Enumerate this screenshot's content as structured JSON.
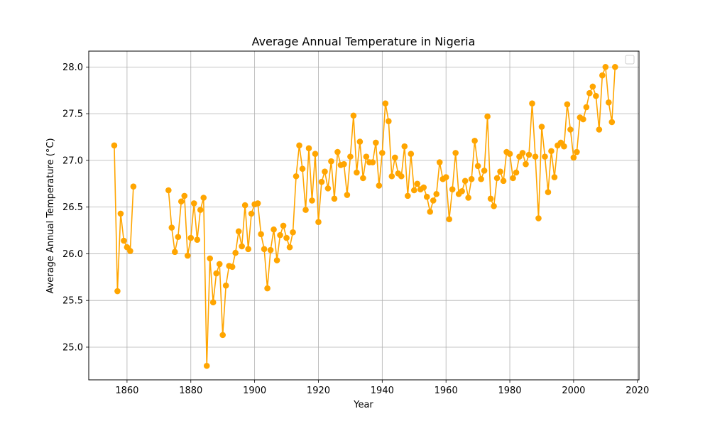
{
  "chart_data": {
    "type": "line",
    "title": "Average Annual Temperature in Nigeria",
    "xlabel": "Year",
    "ylabel": "Average Annual Temperature (°C)",
    "xlim": [
      1848,
      2020.5
    ],
    "ylim": [
      24.65,
      28.17
    ],
    "xticks": [
      1860,
      1880,
      1900,
      1920,
      1940,
      1960,
      1980,
      2000,
      2020
    ],
    "yticks": [
      25.0,
      25.5,
      26.0,
      26.5,
      27.0,
      27.5,
      28.0
    ],
    "grid": true,
    "legend": {
      "position": "top-right",
      "entries": []
    },
    "color": "#ffa500",
    "series": [
      {
        "x": [
          1856,
          1857,
          1858,
          1859,
          1860,
          1861,
          1862,
          1863,
          1873,
          1874,
          1875,
          1876,
          1877,
          1878,
          1879,
          1880,
          1881,
          1882,
          1883,
          1884,
          1885,
          1886,
          1887,
          1888,
          1889,
          1890,
          1891,
          1892,
          1893,
          1894,
          1895,
          1896,
          1897,
          1898,
          1899,
          1900,
          1901,
          1902,
          1903,
          1904,
          1905,
          1906,
          1907,
          1908,
          1909,
          1910,
          1911,
          1912,
          1913,
          1914,
          1915,
          1916,
          1917,
          1918,
          1919,
          1920,
          1921,
          1922,
          1923,
          1924,
          1925,
          1926,
          1927,
          1928,
          1929,
          1930,
          1931,
          1932,
          1933,
          1934,
          1935,
          1936,
          1937,
          1938,
          1939,
          1940,
          1941,
          1942,
          1943,
          1944,
          1945,
          1946,
          1947,
          1948,
          1949,
          1950,
          1951,
          1952,
          1953,
          1954,
          1955,
          1956,
          1957,
          1958,
          1959,
          1960,
          1961,
          1962,
          1963,
          1964,
          1965,
          1966,
          1967,
          1968,
          1969,
          1970,
          1971,
          1972,
          1973,
          1974,
          1975,
          1976,
          1977,
          1978,
          1979,
          1980,
          1981,
          1982,
          1983,
          1984,
          1985,
          1986,
          1987,
          1988,
          1989,
          1990,
          1991,
          1992,
          1993,
          1994,
          1995,
          1996,
          1997,
          1998,
          1999,
          2000,
          2001,
          2002,
          2003,
          2004,
          2005,
          2006,
          2007,
          2008,
          2009,
          2010,
          2011,
          2012,
          2013
        ],
        "y": [
          27.16,
          25.6,
          26.43,
          26.14,
          26.07,
          26.03,
          26.72,
          null,
          26.68,
          26.28,
          26.02,
          26.18,
          26.56,
          26.62,
          25.98,
          26.17,
          26.54,
          26.15,
          26.47,
          26.6,
          24.8,
          25.95,
          25.48,
          25.79,
          25.89,
          25.13,
          25.66,
          25.87,
          25.86,
          26.01,
          26.24,
          26.08,
          26.52,
          26.05,
          26.43,
          26.53,
          26.54,
          26.21,
          26.05,
          25.63,
          26.04,
          26.26,
          25.93,
          26.2,
          26.3,
          26.17,
          26.07,
          26.23,
          26.83,
          27.16,
          26.91,
          26.47,
          27.13,
          26.57,
          27.07,
          26.34,
          26.77,
          26.88,
          26.7,
          26.99,
          26.59,
          27.09,
          26.95,
          26.96,
          26.63,
          27.04,
          27.48,
          26.87,
          27.2,
          26.81,
          27.04,
          26.98,
          26.98,
          27.19,
          26.73,
          27.08,
          27.61,
          27.42,
          26.83,
          27.03,
          26.86,
          26.83,
          27.15,
          26.62,
          27.07,
          26.68,
          26.75,
          26.69,
          26.71,
          26.61,
          26.45,
          26.57,
          26.64,
          26.98,
          26.8,
          26.82,
          26.37,
          26.69,
          27.08,
          26.64,
          26.67,
          26.78,
          26.6,
          26.8,
          27.21,
          26.94,
          26.8,
          26.89,
          27.47,
          26.59,
          26.51,
          26.81,
          26.88,
          26.78,
          27.09,
          27.07,
          26.81,
          26.87,
          27.04,
          27.08,
          26.96,
          27.06,
          27.61,
          27.04,
          26.38,
          27.36,
          27.04,
          26.66,
          27.1,
          26.82,
          27.16,
          27.19,
          27.15,
          27.6,
          27.33,
          27.03,
          27.09,
          27.46,
          27.44,
          27.57,
          27.72,
          27.79,
          27.69,
          27.33,
          27.91,
          28.0,
          27.62,
          27.41,
          28.0
        ]
      }
    ]
  }
}
